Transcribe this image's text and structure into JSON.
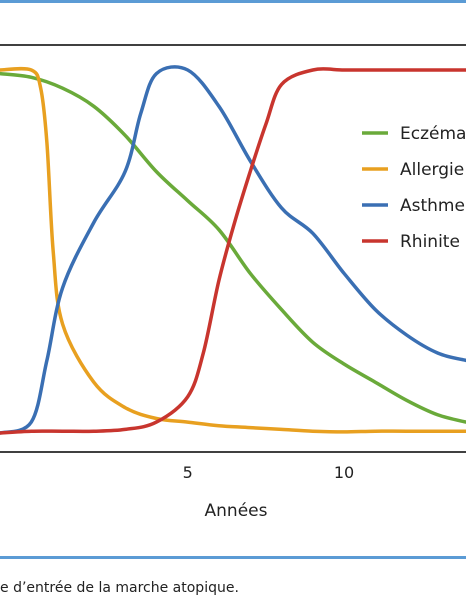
{
  "chart_data": {
    "type": "line",
    "xlabel": "Années",
    "xlim": [
      -1,
      13.9
    ],
    "ylim": [
      0,
      100
    ],
    "xticks": [
      5,
      10
    ],
    "grid": false,
    "legend_position": "right",
    "series": [
      {
        "name": "Eczéma",
        "color": "#6aaa3a",
        "points": [
          [
            -1,
            99
          ],
          [
            0,
            98
          ],
          [
            1,
            95
          ],
          [
            2,
            90
          ],
          [
            3,
            82
          ],
          [
            4,
            72
          ],
          [
            5,
            64
          ],
          [
            6,
            56
          ],
          [
            7,
            44
          ],
          [
            8,
            34
          ],
          [
            9,
            25
          ],
          [
            10,
            19
          ],
          [
            11,
            14
          ],
          [
            12,
            9
          ],
          [
            13,
            5
          ],
          [
            13.9,
            3
          ]
        ]
      },
      {
        "name": "Allergie",
        "color": "#e8a020",
        "points": [
          [
            -1,
            100
          ],
          [
            0,
            100
          ],
          [
            0.3,
            95
          ],
          [
            0.5,
            80
          ],
          [
            0.7,
            50
          ],
          [
            1,
            30
          ],
          [
            2,
            14
          ],
          [
            3,
            7
          ],
          [
            4,
            4
          ],
          [
            5,
            3
          ],
          [
            6,
            2
          ],
          [
            7,
            1.5
          ],
          [
            8,
            1
          ],
          [
            9,
            0.5
          ],
          [
            10,
            0.3
          ],
          [
            11,
            0.5
          ],
          [
            12,
            0.5
          ],
          [
            13.9,
            0.5
          ]
        ]
      },
      {
        "name": "Asthme",
        "color": "#3a6fb3",
        "points": [
          [
            -1,
            0
          ],
          [
            0,
            3
          ],
          [
            0.5,
            20
          ],
          [
            1,
            40
          ],
          [
            2,
            58
          ],
          [
            3,
            72
          ],
          [
            3.5,
            88
          ],
          [
            4,
            99
          ],
          [
            5,
            100
          ],
          [
            6,
            90
          ],
          [
            7,
            75
          ],
          [
            8,
            62
          ],
          [
            9,
            55
          ],
          [
            10,
            44
          ],
          [
            11,
            34
          ],
          [
            12,
            27
          ],
          [
            13,
            22
          ],
          [
            13.9,
            20
          ]
        ]
      },
      {
        "name": "Rhinite",
        "color": "#c8352e",
        "points": [
          [
            -1,
            0
          ],
          [
            0,
            0.5
          ],
          [
            1,
            0.5
          ],
          [
            2,
            0.5
          ],
          [
            3,
            1
          ],
          [
            4,
            3
          ],
          [
            5,
            10
          ],
          [
            5.5,
            22
          ],
          [
            6,
            42
          ],
          [
            6.5,
            58
          ],
          [
            7,
            72
          ],
          [
            7.5,
            85
          ],
          [
            8,
            96
          ],
          [
            9,
            100
          ],
          [
            10,
            100
          ],
          [
            11,
            100
          ],
          [
            12,
            100
          ],
          [
            13,
            100
          ],
          [
            13.9,
            100
          ]
        ]
      }
    ]
  },
  "caption": "e d’entrée de la marche atopique."
}
